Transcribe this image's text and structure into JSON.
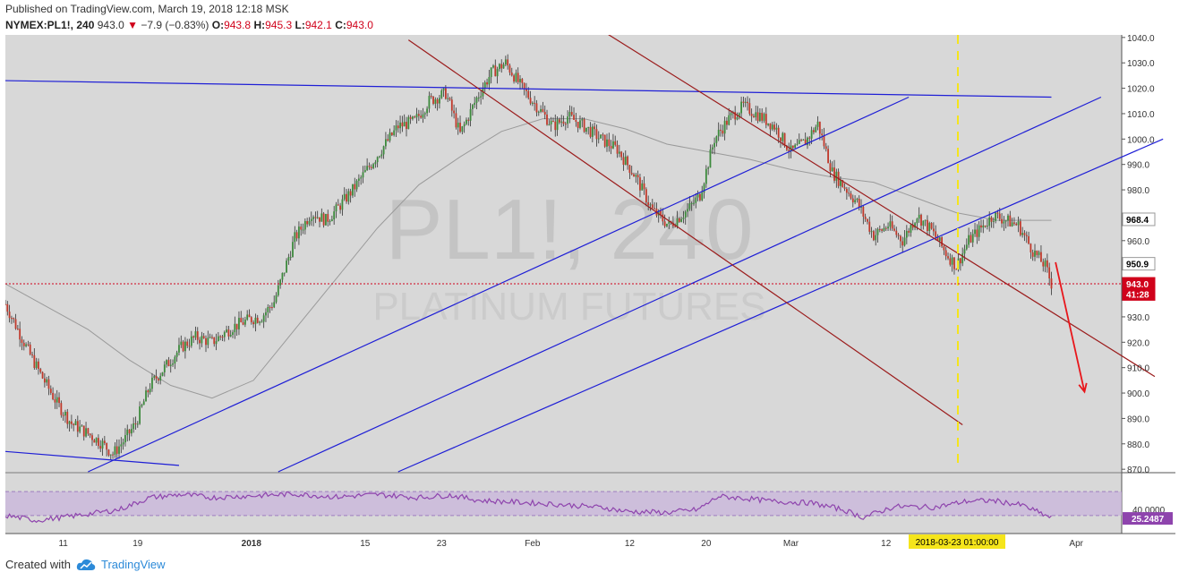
{
  "header": {
    "published": "Published on TradingView.com, March 19, 2018 12:18 MSK",
    "symbol": "NYMEX:PL1!, 240",
    "last": "943.0",
    "change": "−7.9 (−0.83%)",
    "open_label": "O:",
    "open": "943.8",
    "high_label": "H:",
    "high": "945.3",
    "low_label": "L:",
    "low": "942.1",
    "close_label": "C:",
    "close": "943.0"
  },
  "watermark": {
    "symbol": "PL1!, 240",
    "name": "PLATINUM FUTURES"
  },
  "footer": {
    "created_with": "Created with",
    "brand": "TradingView"
  },
  "colors": {
    "up": "#3c8a3c",
    "down": "#c0392b",
    "blue_lines": "#1f1fd6",
    "red_lines": "#9b1c1c",
    "ma": "#9a9a9a",
    "rsi": "#8e44ad",
    "price_tag": "#d0021b",
    "time_marker": "#f5e51b"
  },
  "chart_data": [
    {
      "type": "line",
      "title": "NYMEX:PL1!, 240",
      "y_ticks": [
        "870.0",
        "880.0",
        "890.0",
        "900.0",
        "910.0",
        "920.0",
        "930.0",
        "940.0",
        "950.0",
        "960.0",
        "970.0",
        "980.0",
        "990.0",
        "1000.0",
        "1010.0",
        "1020.0",
        "1030.0",
        "1040.0"
      ],
      "ylim": [
        869,
        1041
      ],
      "x_ticks": [
        "11",
        "19",
        "2018",
        "15",
        "23",
        "Feb",
        "12",
        "20",
        "Mar",
        "12",
        "Apr"
      ],
      "price_labels": [
        {
          "text": "968.4",
          "value": 968.4,
          "style": "ma"
        },
        {
          "text": "950.9",
          "value": 950.9,
          "style": "ma"
        },
        {
          "text": "943.0",
          "value": 943.0,
          "style": "last"
        },
        {
          "text": "41:28",
          "value": 939.0,
          "style": "countdown"
        }
      ],
      "time_marker_label": "2018-03-23 01:00:00",
      "series": [
        {
          "name": "PL1!",
          "values": [
            [
              0,
              935
            ],
            [
              6,
              925
            ],
            [
              12,
              915
            ],
            [
              18,
              906
            ],
            [
              25,
              896
            ],
            [
              32,
              888
            ],
            [
              40,
              884
            ],
            [
              47,
              880
            ],
            [
              52,
              876
            ],
            [
              58,
              882
            ],
            [
              63,
              888
            ],
            [
              70,
              903
            ],
            [
              78,
              911
            ],
            [
              85,
              918
            ],
            [
              92,
              922
            ],
            [
              100,
              920
            ],
            [
              110,
              926
            ],
            [
              118,
              929
            ],
            [
              124,
              930
            ],
            [
              130,
              936
            ],
            [
              140,
              961
            ],
            [
              148,
              971
            ],
            [
              155,
              968
            ],
            [
              160,
              972
            ],
            [
              168,
              980
            ],
            [
              175,
              988
            ],
            [
              182,
              996
            ],
            [
              190,
              1005
            ],
            [
              198,
              1007
            ],
            [
              205,
              1015
            ],
            [
              213,
              1018
            ],
            [
              220,
              1002
            ],
            [
              228,
              1016
            ],
            [
              235,
              1026
            ],
            [
              242,
              1030
            ],
            [
              250,
              1020
            ],
            [
              258,
              1012
            ],
            [
              265,
              1005
            ],
            [
              272,
              1009
            ],
            [
              280,
              1005
            ],
            [
              288,
              1000
            ],
            [
              296,
              996
            ],
            [
              305,
              985
            ],
            [
              313,
              972
            ],
            [
              321,
              966
            ],
            [
              330,
              972
            ],
            [
              336,
              978
            ],
            [
              343,
              1000
            ],
            [
              350,
              1008
            ],
            [
              357,
              1013
            ],
            [
              365,
              1009
            ],
            [
              372,
              1005
            ],
            [
              380,
              995
            ],
            [
              387,
              999
            ],
            [
              393,
              1006
            ],
            [
              400,
              987
            ],
            [
              405,
              982
            ],
            [
              412,
              975
            ],
            [
              420,
              962
            ],
            [
              427,
              966
            ],
            [
              434,
              960
            ],
            [
              441,
              970
            ],
            [
              448,
              964
            ],
            [
              455,
              955
            ],
            [
              460,
              950
            ],
            [
              466,
              960
            ],
            [
              472,
              965
            ],
            [
              478,
              970
            ],
            [
              484,
              968
            ],
            [
              490,
              966
            ],
            [
              497,
              956
            ],
            [
              503,
              950
            ],
            [
              506,
              943
            ]
          ]
        },
        {
          "name": "MA",
          "values": [
            [
              0,
              943
            ],
            [
              20,
              934
            ],
            [
              40,
              925
            ],
            [
              60,
              913
            ],
            [
              80,
              903
            ],
            [
              100,
              898
            ],
            [
              120,
              905
            ],
            [
              140,
              925
            ],
            [
              160,
              945
            ],
            [
              180,
              965
            ],
            [
              200,
              982
            ],
            [
              220,
              993
            ],
            [
              240,
              1003
            ],
            [
              260,
              1008
            ],
            [
              280,
              1008
            ],
            [
              300,
              1004
            ],
            [
              320,
              998
            ],
            [
              340,
              995
            ],
            [
              360,
              992
            ],
            [
              380,
              988
            ],
            [
              400,
              985
            ],
            [
              420,
              983
            ],
            [
              440,
              977
            ],
            [
              460,
              971
            ],
            [
              480,
              968
            ],
            [
              506,
              968
            ]
          ]
        }
      ],
      "trendlines": [
        {
          "color": "blue",
          "from": [
            0,
            1023
          ],
          "to": [
            506,
            1016.5
          ]
        },
        {
          "color": "blue",
          "from": [
            0,
            877
          ],
          "to": [
            84,
            871.5
          ]
        },
        {
          "color": "blue",
          "from": [
            40,
            869
          ],
          "to": [
            437,
            1016.5
          ]
        },
        {
          "color": "blue",
          "from": [
            132,
            869
          ],
          "to": [
            530,
            1016.5
          ]
        },
        {
          "color": "blue",
          "from": [
            190,
            869
          ],
          "to": [
            560,
            1000
          ]
        },
        {
          "color": "red",
          "from": [
            195,
            1039
          ],
          "to": [
            463,
            887.5
          ]
        },
        {
          "color": "red",
          "from": [
            290,
            1042
          ],
          "to": [
            556,
            906.5
          ]
        }
      ],
      "arrow": {
        "from": [
          508,
          951.5
        ],
        "to": [
          522,
          900.5
        ]
      }
    },
    {
      "type": "line",
      "title": "RSI",
      "y_ticks": [
        "40.0000"
      ],
      "current_label": "25.2487",
      "ylim": [
        0,
        100
      ],
      "bands": [
        30,
        70
      ],
      "values": [
        [
          0,
          30
        ],
        [
          15,
          22
        ],
        [
          30,
          28
        ],
        [
          45,
          35
        ],
        [
          55,
          40
        ],
        [
          70,
          60
        ],
        [
          85,
          65
        ],
        [
          100,
          60
        ],
        [
          120,
          63
        ],
        [
          140,
          66
        ],
        [
          160,
          61
        ],
        [
          180,
          65
        ],
        [
          200,
          60
        ],
        [
          215,
          64
        ],
        [
          230,
          55
        ],
        [
          250,
          52
        ],
        [
          270,
          48
        ],
        [
          290,
          43
        ],
        [
          300,
          37
        ],
        [
          320,
          35
        ],
        [
          335,
          40
        ],
        [
          345,
          62
        ],
        [
          360,
          58
        ],
        [
          370,
          54
        ],
        [
          390,
          51
        ],
        [
          405,
          40
        ],
        [
          415,
          27
        ],
        [
          430,
          45
        ],
        [
          450,
          44
        ],
        [
          465,
          54
        ],
        [
          478,
          55
        ],
        [
          492,
          47
        ],
        [
          506,
          26
        ]
      ]
    }
  ]
}
